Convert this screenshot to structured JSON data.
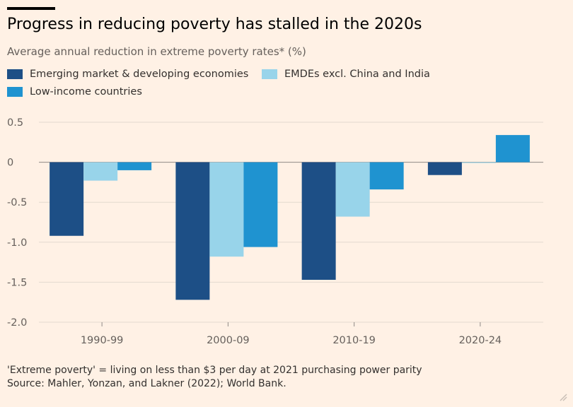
{
  "header": {
    "title": "Progress in reducing poverty has stalled in the 2020s",
    "subtitle": "Average annual reduction in extreme poverty rates* (%)"
  },
  "footer": {
    "note": "'Extreme poverty' = living on less than $3 per day at 2021 purchasing power parity",
    "source": "Source: Mahler, Yonzan, and Lakner (2022); World Bank."
  },
  "colors": {
    "background": "#fff1e5",
    "series": [
      "#1d4f86",
      "#98d4ea",
      "#1f93d0"
    ]
  },
  "chart_data": {
    "type": "bar",
    "categories": [
      "1990-99",
      "2000-09",
      "2010-19",
      "2020-24"
    ],
    "series": [
      {
        "name": "Emerging market & developing economies",
        "values": [
          -0.92,
          -1.72,
          -1.47,
          -0.16
        ]
      },
      {
        "name": "EMDEs excl. China and India",
        "values": [
          -0.23,
          -1.18,
          -0.68,
          -0.01
        ]
      },
      {
        "name": "Low-income countries",
        "values": [
          -0.1,
          -1.06,
          -0.34,
          0.34
        ]
      }
    ],
    "title": "Progress in reducing poverty has stalled in the 2020s",
    "ylabel": "",
    "xlabel": "",
    "ylim": [
      -2.0,
      0.5
    ],
    "yticks": [
      "0.5",
      "0",
      "-0.5",
      "-1.0",
      "-1.5",
      "-2.0"
    ],
    "ytick_values": [
      0.5,
      0,
      -0.5,
      -1.0,
      -1.5,
      -2.0
    ],
    "grid": "horizontal",
    "legend": "top-left"
  }
}
